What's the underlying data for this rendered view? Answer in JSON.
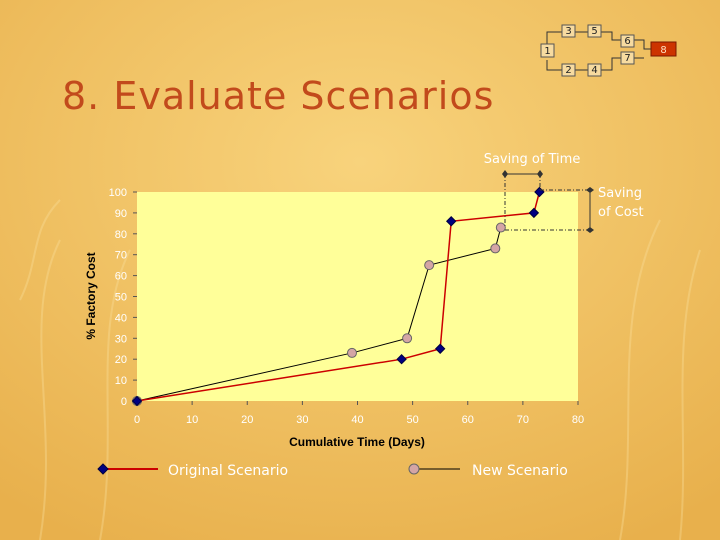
{
  "slide": {
    "title": "8. Evaluate Scenarios"
  },
  "flow": {
    "steps": [
      "1",
      "2",
      "3",
      "4",
      "5",
      "6",
      "7",
      "8"
    ],
    "highlighted": "8"
  },
  "annotations": {
    "time": "Saving of Time",
    "cost_line1": "Saving",
    "cost_line2": "of Cost"
  },
  "colors": {
    "background": "#f1c060",
    "plot_area": "#ffff99",
    "original": "#cc0000",
    "original_marker": "#000080",
    "new": "#000000",
    "new_marker": "#d4a5a5",
    "highlight_box": "#cc3300",
    "title": "#c24a1c"
  },
  "chart_data": {
    "type": "line",
    "xlabel": "Cumulative Time (Days)",
    "ylabel": "% Factory Cost",
    "xlim": [
      0,
      80
    ],
    "ylim": [
      0,
      100
    ],
    "xticks": [
      0,
      10,
      20,
      30,
      40,
      50,
      60,
      70,
      80
    ],
    "yticks": [
      0,
      10,
      20,
      30,
      40,
      50,
      60,
      70,
      80,
      90,
      100
    ],
    "grid": false,
    "legend_position": "bottom",
    "series": [
      {
        "name": "Original Scenario",
        "x": [
          0,
          48,
          55,
          57,
          72,
          73
        ],
        "y": [
          0,
          20,
          25,
          86,
          90,
          100
        ],
        "marker": "diamond"
      },
      {
        "name": "New Scenario",
        "x": [
          0,
          39,
          49,
          53,
          65,
          66
        ],
        "y": [
          0,
          23,
          30,
          65,
          73,
          83
        ],
        "marker": "circle"
      }
    ]
  }
}
